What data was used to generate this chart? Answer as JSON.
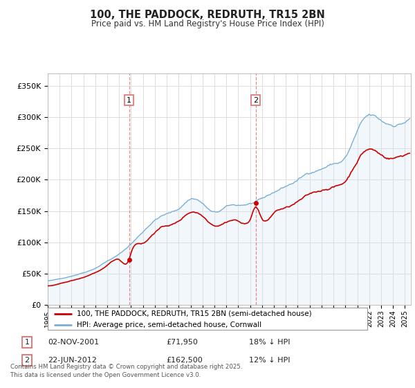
{
  "title": "100, THE PADDOCK, REDRUTH, TR15 2BN",
  "subtitle": "Price paid vs. HM Land Registry's House Price Index (HPI)",
  "ylabel_ticks": [
    "£0",
    "£50K",
    "£100K",
    "£150K",
    "£200K",
    "£250K",
    "£300K",
    "£350K"
  ],
  "ytick_values": [
    0,
    50000,
    100000,
    150000,
    200000,
    250000,
    300000,
    350000
  ],
  "ylim": [
    0,
    370000
  ],
  "xlim_start": 1995.0,
  "xlim_end": 2025.5,
  "sale1_x": 2001.84,
  "sale1_y": 71950,
  "sale1_label": "1",
  "sale1_date": "02-NOV-2001",
  "sale1_price": "£71,950",
  "sale1_hpi": "18% ↓ HPI",
  "sale2_x": 2012.47,
  "sale2_y": 162500,
  "sale2_label": "2",
  "sale2_date": "22-JUN-2012",
  "sale2_price": "£162,500",
  "sale2_hpi": "12% ↓ HPI",
  "hpi_color": "#7aaed4",
  "hpi_fill_color": "#cce0f0",
  "sold_color": "#cc0000",
  "vline_color": "#e07070",
  "background_color": "#ffffff",
  "grid_color": "#dddddd",
  "legend_label_sold": "100, THE PADDOCK, REDRUTH, TR15 2BN (semi-detached house)",
  "legend_label_hpi": "HPI: Average price, semi-detached house, Cornwall",
  "footnote": "Contains HM Land Registry data © Crown copyright and database right 2025.\nThis data is licensed under the Open Government Licence v3.0."
}
